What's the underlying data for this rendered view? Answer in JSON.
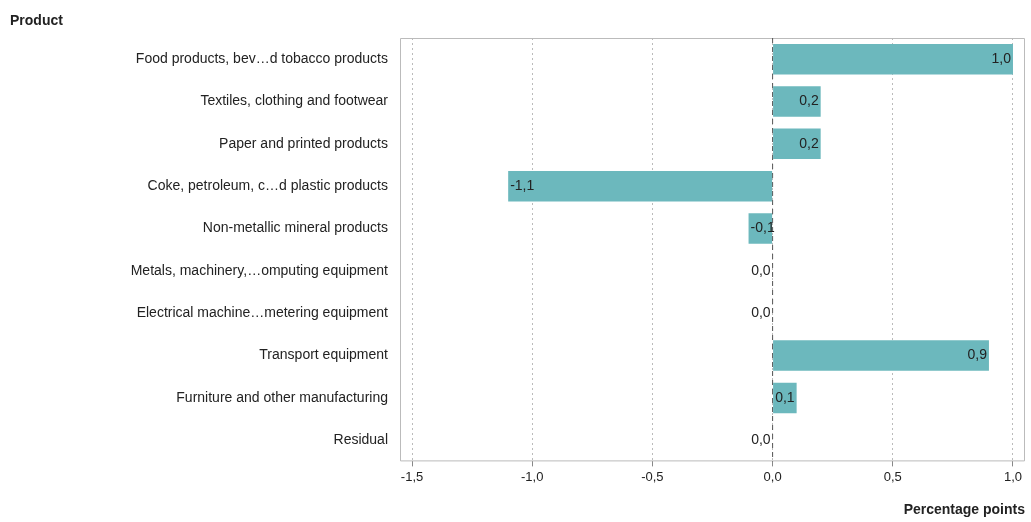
{
  "chart_data": {
    "type": "bar",
    "orientation": "horizontal",
    "ylabel": "Product",
    "xlabel": "Percentage points",
    "categories": [
      "Food products, bev…d tobacco products",
      "Textiles, clothing and footwear",
      "Paper and printed products",
      "Coke, petroleum, c…d plastic products",
      "Non-metallic mineral products",
      "Metals, machinery,…omputing equipment",
      "Electrical machine…metering equipment",
      "Transport equipment",
      "Furniture and other manufacturing",
      "Residual"
    ],
    "values": [
      1.0,
      0.2,
      0.2,
      -1.1,
      -0.1,
      0.0,
      0.0,
      0.9,
      0.1,
      0.0
    ],
    "value_labels": [
      "1,0",
      "0,2",
      "0,2",
      "-1,1",
      "-0,1",
      "0,0",
      "0,0",
      "0,9",
      "0,1",
      "0,0"
    ],
    "color": "#6cb8bd",
    "xlim": [
      -1.55,
      1.05
    ],
    "xticks": [
      {
        "value": -1.5,
        "label": "-1,5"
      },
      {
        "value": -1.0,
        "label": "-1,0"
      },
      {
        "value": -0.5,
        "label": "-0,5"
      },
      {
        "value": 0,
        "label": "0,0"
      },
      {
        "value": 0.5,
        "label": "0,5"
      },
      {
        "value": 1.0,
        "label": "1,0"
      }
    ],
    "grid": "x",
    "ref_lines": [
      {
        "axis": "x",
        "value": 0,
        "color": "#555555",
        "line_style": "dashed"
      }
    ],
    "legend": false
  }
}
